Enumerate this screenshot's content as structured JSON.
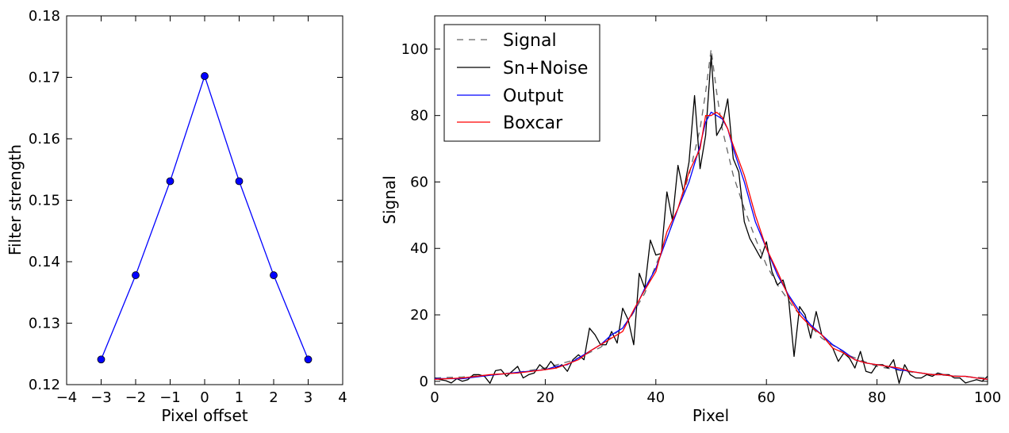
{
  "chart_data": [
    {
      "type": "line",
      "xlabel": "Pixel offset",
      "ylabel": "Filter strength",
      "xlim": [
        -4,
        4
      ],
      "ylim": [
        0.12,
        0.18
      ],
      "xticks": [
        "−4",
        "−3",
        "−2",
        "−1",
        "0",
        "1",
        "2",
        "3",
        "4"
      ],
      "yticks": [
        "0.12",
        "0.13",
        "0.14",
        "0.15",
        "0.16",
        "0.17",
        "0.18"
      ],
      "grid": false,
      "series": [
        {
          "color": "#0000ff",
          "marker": "circle",
          "x": [
            -3,
            -2,
            -1,
            0,
            1,
            2,
            3
          ],
          "y": [
            0.1241,
            0.1378,
            0.1531,
            0.1702,
            0.1531,
            0.1378,
            0.1241
          ]
        }
      ]
    },
    {
      "type": "line",
      "xlabel": "Pixel",
      "ylabel": "Signal",
      "xlim": [
        0,
        100
      ],
      "ylim": [
        -1,
        110
      ],
      "xticks": [
        "0",
        "20",
        "40",
        "60",
        "80",
        "100"
      ],
      "yticks": [
        "0",
        "20",
        "40",
        "60",
        "80",
        "100"
      ],
      "grid": false,
      "legend_position": "top-left",
      "series": [
        {
          "name": "Signal",
          "color": "#666666",
          "style": "dashed",
          "x": [
            0,
            5,
            10,
            15,
            20,
            25,
            30,
            35,
            38,
            40,
            42,
            44,
            46,
            48,
            49,
            50,
            51,
            52,
            54,
            56,
            58,
            60,
            62,
            65,
            70,
            75,
            80,
            85,
            90,
            95,
            100
          ],
          "y": [
            1.0,
            1.3,
            1.9,
            2.7,
            4.0,
            6.3,
            10.2,
            18.0,
            26.5,
            35.0,
            43.0,
            52.0,
            62.0,
            76.0,
            87.0,
            100.0,
            87.0,
            76.0,
            62.0,
            52.0,
            43.0,
            35.0,
            29.0,
            22.0,
            13.0,
            7.7,
            4.5,
            3.0,
            2.1,
            1.5,
            1.0
          ]
        },
        {
          "name": "Sn+Noise",
          "color": "#000000",
          "style": "solid",
          "x": [
            0,
            1,
            2,
            3,
            4,
            5,
            6,
            7,
            8,
            9,
            10,
            11,
            12,
            13,
            14,
            15,
            16,
            17,
            18,
            19,
            20,
            21,
            22,
            23,
            24,
            25,
            26,
            27,
            28,
            29,
            30,
            31,
            32,
            33,
            34,
            35,
            36,
            37,
            38,
            39,
            40,
            41,
            42,
            43,
            44,
            45,
            46,
            47,
            48,
            49,
            50,
            51,
            52,
            53,
            54,
            55,
            56,
            57,
            58,
            59,
            60,
            61,
            62,
            63,
            64,
            65,
            66,
            67,
            68,
            69,
            70,
            71,
            72,
            73,
            74,
            75,
            76,
            77,
            78,
            79,
            80,
            81,
            82,
            83,
            84,
            85,
            86,
            87,
            88,
            89,
            90,
            91,
            92,
            93,
            94,
            95,
            96,
            97,
            98,
            99,
            100
          ],
          "y": [
            1.0,
            0.5,
            0.2,
            -0.5,
            0.8,
            0.0,
            0.5,
            2.0,
            2.0,
            1.5,
            -0.6,
            3.2,
            3.5,
            1.5,
            3.0,
            4.5,
            1.0,
            2.0,
            2.5,
            5.0,
            3.5,
            6.0,
            4.0,
            5.0,
            3.0,
            6.5,
            8.0,
            6.5,
            16.0,
            14.0,
            11.0,
            11.0,
            15.0,
            11.5,
            22.0,
            18.5,
            11.0,
            32.5,
            28.0,
            42.5,
            38.0,
            38.5,
            57.0,
            48.5,
            65.0,
            57.0,
            66.0,
            86.0,
            64.0,
            74.0,
            98.0,
            74.0,
            77.0,
            85.0,
            67.0,
            63.0,
            48.0,
            43.0,
            40.0,
            37.0,
            42.0,
            33.0,
            29.0,
            30.5,
            25.0,
            7.5,
            22.5,
            20.0,
            13.0,
            21.0,
            14.0,
            12.0,
            10.0,
            6.0,
            8.5,
            7.0,
            4.0,
            9.0,
            3.0,
            2.5,
            5.0,
            5.0,
            4.0,
            6.5,
            -0.6,
            5.0,
            2.0,
            1.0,
            1.0,
            2.0,
            1.5,
            2.5,
            2.0,
            2.0,
            1.0,
            1.0,
            -0.5,
            0.0,
            0.5,
            0.0,
            1.5
          ]
        },
        {
          "name": "Output",
          "color": "#0000ff",
          "style": "solid",
          "x": [
            0,
            5,
            10,
            15,
            20,
            22,
            24,
            26,
            28,
            30,
            32,
            34,
            36,
            38,
            40,
            42,
            44,
            46,
            48,
            49,
            50,
            51,
            52,
            53,
            54,
            56,
            58,
            60,
            62,
            64,
            66,
            68,
            70,
            72,
            74,
            76,
            78,
            80,
            82,
            84,
            86,
            88,
            90,
            92,
            94,
            96,
            98,
            100
          ],
          "y": [
            0.8,
            0.8,
            1.8,
            2.7,
            3.5,
            4.5,
            5.0,
            7.0,
            9.0,
            11.0,
            14.0,
            16.0,
            21.0,
            28.0,
            34.0,
            43.0,
            52.0,
            60.0,
            71.0,
            78.0,
            81.0,
            80.0,
            79.0,
            76.0,
            70.0,
            60.0,
            48.0,
            40.0,
            32.0,
            26.0,
            21.0,
            17.0,
            14.0,
            11.0,
            9.0,
            6.5,
            5.5,
            5.0,
            4.5,
            3.5,
            3.0,
            2.5,
            2.0,
            2.0,
            1.5,
            1.5,
            1.0,
            0.6
          ]
        },
        {
          "name": "Boxcar",
          "color": "#ff0000",
          "style": "solid",
          "x": [
            0,
            5,
            10,
            15,
            20,
            22,
            24,
            26,
            28,
            30,
            32,
            34,
            36,
            38,
            40,
            42,
            44,
            46,
            48,
            49,
            50,
            51,
            52,
            53,
            54,
            56,
            58,
            60,
            62,
            64,
            66,
            68,
            70,
            72,
            74,
            76,
            78,
            80,
            82,
            84,
            86,
            88,
            90,
            92,
            94,
            96,
            98,
            100
          ],
          "y": [
            0.6,
            1.0,
            2.0,
            2.5,
            3.5,
            4.0,
            5.2,
            6.5,
            9.0,
            11.0,
            13.0,
            15.0,
            21.5,
            27.5,
            33.0,
            45.0,
            52.0,
            63.0,
            70.0,
            80.0,
            80.0,
            81.0,
            79.5,
            76.0,
            71.0,
            62.0,
            50.0,
            40.0,
            33.0,
            25.5,
            20.0,
            16.5,
            14.0,
            10.0,
            8.5,
            6.5,
            5.5,
            5.0,
            4.5,
            4.0,
            3.0,
            2.5,
            2.0,
            2.0,
            1.5,
            1.5,
            1.0,
            0.6
          ]
        }
      ]
    }
  ]
}
